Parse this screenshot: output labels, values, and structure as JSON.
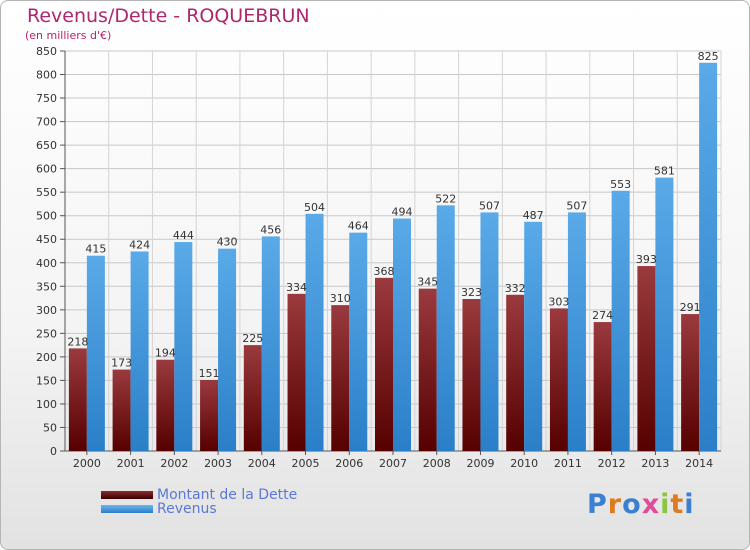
{
  "header": {
    "title": "Revenus/Dette - ROQUEBRUN",
    "subtitle": "(en milliers d'€)"
  },
  "legend": {
    "items": [
      {
        "label": "Montant de la Dette",
        "color": "#6b0f13"
      },
      {
        "label": "Revenus",
        "color": "#4a9de0"
      }
    ]
  },
  "logo": {
    "letters": [
      {
        "ch": "P",
        "color": "#3a7fd0"
      },
      {
        "ch": "r",
        "color": "#e07a1f"
      },
      {
        "ch": "o",
        "color": "#3a7fd0"
      },
      {
        "ch": "x",
        "color": "#e04b9a"
      },
      {
        "ch": "i",
        "color": "#8cc63f"
      },
      {
        "ch": "t",
        "color": "#e07a1f"
      },
      {
        "ch": "i",
        "color": "#3a7fd0"
      }
    ]
  },
  "chart_data": {
    "type": "bar",
    "title": "Revenus/Dette - ROQUEBRUN",
    "ylabel": "(en milliers d'€)",
    "xlabel": "",
    "ylim": [
      0,
      850
    ],
    "yticks": [
      0,
      50,
      100,
      150,
      200,
      250,
      300,
      350,
      400,
      450,
      500,
      550,
      600,
      650,
      700,
      750,
      800,
      850
    ],
    "grid": true,
    "legend_position": "bottom-left",
    "categories": [
      "2000",
      "2001",
      "2002",
      "2003",
      "2004",
      "2005",
      "2006",
      "2007",
      "2008",
      "2009",
      "2010",
      "2011",
      "2012",
      "2013",
      "2014"
    ],
    "series": [
      {
        "name": "Montant de la Dette",
        "color": "#6b0f13",
        "values": [
          218,
          173,
          194,
          151,
          225,
          334,
          310,
          368,
          345,
          323,
          332,
          303,
          274,
          393,
          291
        ]
      },
      {
        "name": "Revenus",
        "color": "#4a9de0",
        "values": [
          415,
          424,
          444,
          430,
          456,
          504,
          464,
          494,
          522,
          507,
          487,
          507,
          553,
          581,
          825
        ]
      }
    ]
  }
}
